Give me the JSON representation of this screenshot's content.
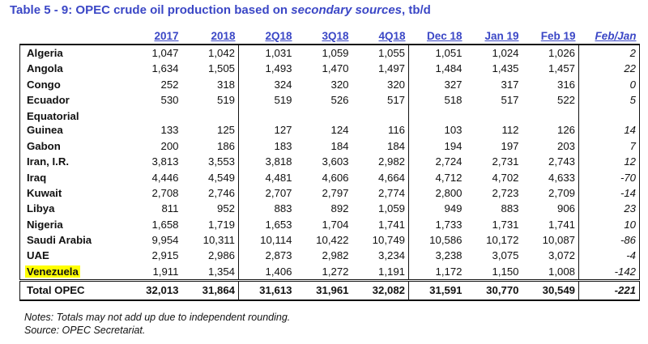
{
  "title": {
    "prefix": "Table 5 - 9: OPEC crude oil production based on ",
    "emph": "secondary sources",
    "suffix": ", tb/d"
  },
  "columns": [
    "2017",
    "2018",
    "2Q18",
    "3Q18",
    "4Q18",
    "Dec 18",
    "Jan 19",
    "Feb 19",
    "Feb/Jan"
  ],
  "rows": [
    {
      "name": "Algeria",
      "values": [
        "1,047",
        "1,042",
        "1,031",
        "1,059",
        "1,055",
        "1,051",
        "1,024",
        "1,026",
        "2"
      ]
    },
    {
      "name": "Angola",
      "values": [
        "1,634",
        "1,505",
        "1,493",
        "1,470",
        "1,497",
        "1,484",
        "1,435",
        "1,457",
        "22"
      ]
    },
    {
      "name": "Congo",
      "values": [
        "252",
        "318",
        "324",
        "320",
        "320",
        "327",
        "317",
        "316",
        "0"
      ]
    },
    {
      "name": "Ecuador",
      "values": [
        "530",
        "519",
        "519",
        "526",
        "517",
        "518",
        "517",
        "522",
        "5"
      ]
    },
    {
      "name_line1": "Equatorial",
      "name": "Guinea",
      "values": [
        "133",
        "125",
        "127",
        "124",
        "116",
        "103",
        "112",
        "126",
        "14"
      ]
    },
    {
      "name": "Gabon",
      "values": [
        "200",
        "186",
        "183",
        "184",
        "184",
        "194",
        "197",
        "203",
        "7"
      ]
    },
    {
      "name": "Iran, I.R.",
      "values": [
        "3,813",
        "3,553",
        "3,818",
        "3,603",
        "2,982",
        "2,724",
        "2,731",
        "2,743",
        "12"
      ]
    },
    {
      "name": "Iraq",
      "values": [
        "4,446",
        "4,549",
        "4,481",
        "4,606",
        "4,664",
        "4,712",
        "4,702",
        "4,633",
        "-70"
      ]
    },
    {
      "name": "Kuwait",
      "values": [
        "2,708",
        "2,746",
        "2,707",
        "2,797",
        "2,774",
        "2,800",
        "2,723",
        "2,709",
        "-14"
      ]
    },
    {
      "name": "Libya",
      "values": [
        "811",
        "952",
        "883",
        "892",
        "1,059",
        "949",
        "883",
        "906",
        "23"
      ]
    },
    {
      "name": "Nigeria",
      "values": [
        "1,658",
        "1,719",
        "1,653",
        "1,704",
        "1,741",
        "1,733",
        "1,731",
        "1,741",
        "10"
      ]
    },
    {
      "name": "Saudi Arabia",
      "values": [
        "9,954",
        "10,311",
        "10,114",
        "10,422",
        "10,749",
        "10,586",
        "10,172",
        "10,087",
        "-86"
      ]
    },
    {
      "name": "UAE",
      "values": [
        "2,915",
        "2,986",
        "2,873",
        "2,982",
        "3,234",
        "3,238",
        "3,075",
        "3,072",
        "-4"
      ]
    },
    {
      "name": "Venezuela",
      "highlight": "#ffff00",
      "values": [
        "1,911",
        "1,354",
        "1,406",
        "1,272",
        "1,191",
        "1,172",
        "1,150",
        "1,008",
        "-142"
      ]
    }
  ],
  "total": {
    "name": "Total  OPEC",
    "values": [
      "32,013",
      "31,864",
      "31,613",
      "31,961",
      "32,082",
      "31,591",
      "30,770",
      "30,549",
      "-221"
    ]
  },
  "notes": [
    "Notes: Totals may not add up due to independent rounding.",
    "Source: OPEC Secretariat."
  ],
  "colors": {
    "title": "#3b47c6",
    "highlight": "#ffff00",
    "text": "#111111"
  }
}
